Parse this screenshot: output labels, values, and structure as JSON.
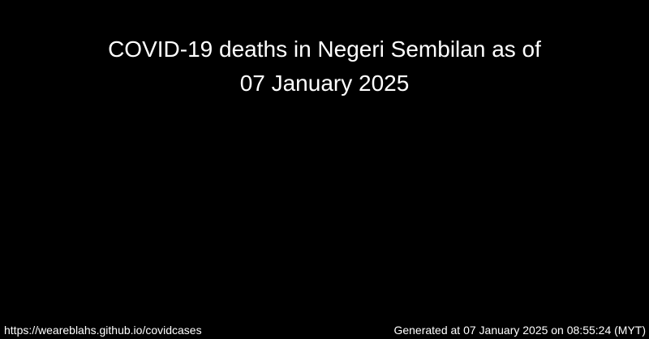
{
  "title": {
    "line1": "COVID-19 deaths in Negeri Sembilan as of",
    "line2": "07 January 2025"
  },
  "footer": {
    "source_url": "https://weareblahs.github.io/covidcases",
    "generated": "Generated at 07 January 2025 on 08:55:24 (MYT)"
  },
  "colors": {
    "background": "#000000",
    "text": "#ffffff"
  }
}
